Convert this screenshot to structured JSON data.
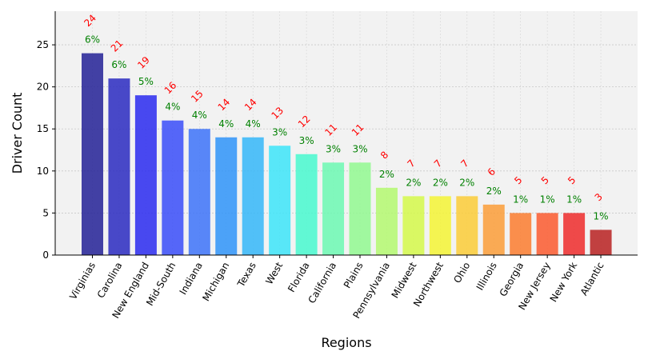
{
  "chart_data": {
    "type": "bar",
    "title": "",
    "xlabel": "Regions",
    "ylabel": "Driver Count",
    "ylim": [
      0,
      29
    ],
    "yticks": [
      0,
      5,
      10,
      15,
      20,
      25
    ],
    "grid": true,
    "categories": [
      "Virginias",
      "Carolina",
      "New England",
      "Mid-South",
      "Indiana",
      "Michigan",
      "Texas",
      "West",
      "Florida",
      "California",
      "Plains",
      "Pennsylvania",
      "Midwest",
      "Northwest",
      "Ohio",
      "Illinois",
      "Georgia",
      "New Jersey",
      "New York",
      "Atlantic"
    ],
    "values": [
      24,
      21,
      19,
      16,
      15,
      14,
      14,
      13,
      12,
      11,
      11,
      8,
      7,
      7,
      7,
      6,
      5,
      5,
      5,
      3
    ],
    "percent_labels": [
      "6%",
      "6%",
      "5%",
      "4%",
      "4%",
      "4%",
      "4%",
      "3%",
      "3%",
      "3%",
      "3%",
      "2%",
      "2%",
      "2%",
      "2%",
      "2%",
      "1%",
      "1%",
      "1%",
      "1%"
    ],
    "bar_colors": [
      "#232196",
      "#2a2ac1",
      "#2a2af0",
      "#3a4ef9",
      "#3d73f9",
      "#2f94f9",
      "#35b7f9",
      "#3de5f9",
      "#48f9cf",
      "#6cf9b3",
      "#92f990",
      "#b4f970",
      "#d5f94a",
      "#f5f535",
      "#fccd37",
      "#fc9d38",
      "#fc7d2f",
      "#fc5a2f",
      "#ef2b2b",
      "#b82121"
    ],
    "count_label_color": "#ff0000",
    "percent_label_color": "#008000",
    "plot_background": "#f2f2f2"
  }
}
